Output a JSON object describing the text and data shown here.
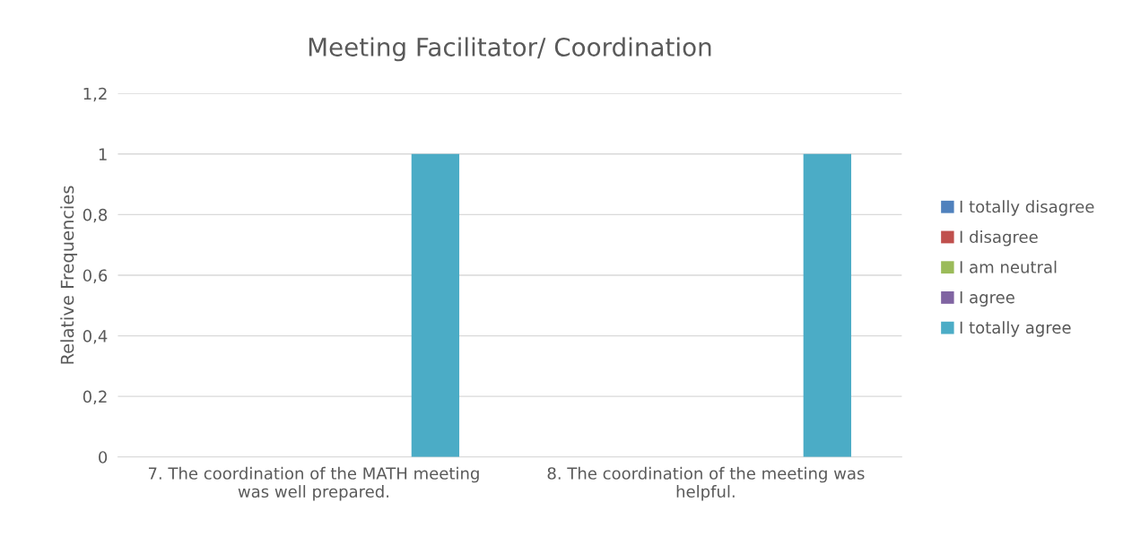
{
  "chart_data": {
    "type": "bar",
    "title": "Meeting Facilitator/ Coordination",
    "ylabel": "Relative Frequencies",
    "categories": [
      "7. The coordination of the MATH meeting\nwas well prepared.",
      "8. The coordination of the meeting was\nhelpful."
    ],
    "series": [
      {
        "name": "I totally disagree",
        "color": "#4f81bd",
        "values": [
          0,
          0
        ]
      },
      {
        "name": "I disagree",
        "color": "#c0504d",
        "values": [
          0,
          0
        ]
      },
      {
        "name": "I am neutral",
        "color": "#9bbb59",
        "values": [
          0,
          0
        ]
      },
      {
        "name": "I agree",
        "color": "#8064a2",
        "values": [
          0,
          0
        ]
      },
      {
        "name": "I totally agree",
        "color": "#4bacc6",
        "values": [
          1,
          1
        ]
      }
    ],
    "ylim": [
      0,
      1.2
    ],
    "yticks": [
      0,
      {
        "value": 0.2,
        "label": "0,2"
      },
      {
        "value": 0.4,
        "label": "0,4"
      },
      {
        "value": 0.6,
        "label": "0,6"
      },
      {
        "value": 0.8,
        "label": "0,8"
      },
      1,
      {
        "value": 1.2,
        "label": "1,2"
      }
    ],
    "grid": "y",
    "legend": "right"
  }
}
